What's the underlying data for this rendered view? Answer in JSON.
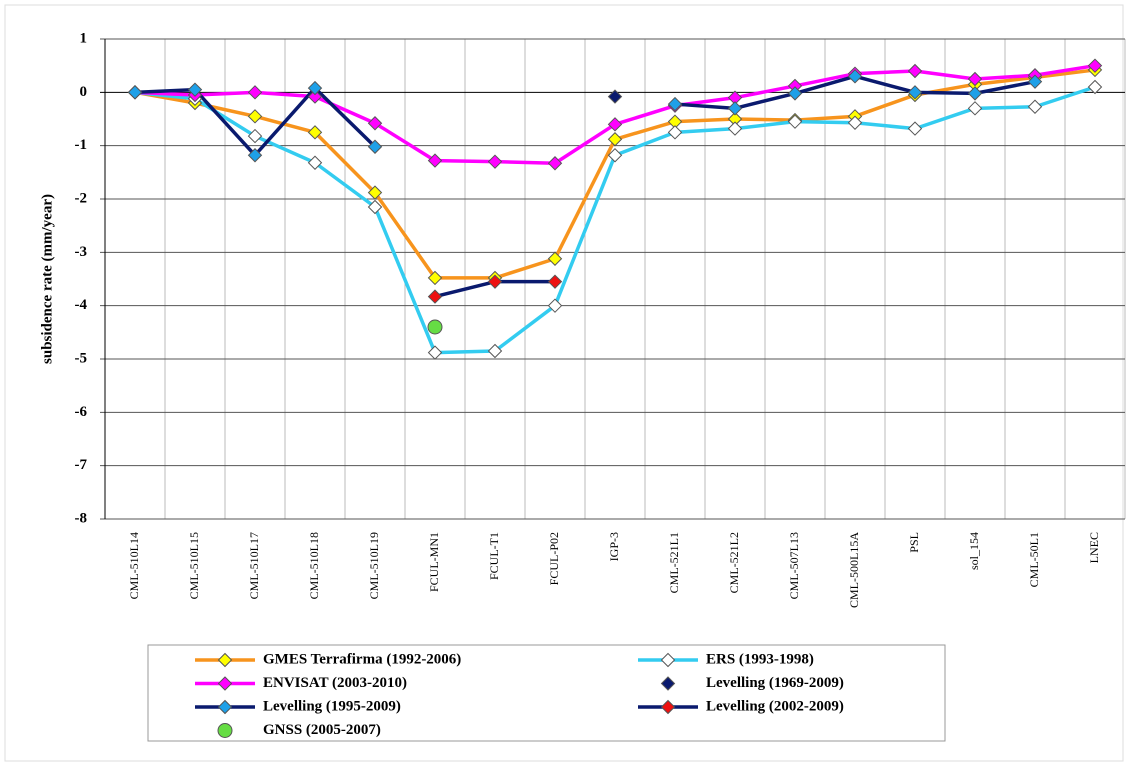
{
  "chart_data": {
    "type": "line",
    "y_label": "subsidence rate (mm/year)",
    "categories": [
      "CML-510L14",
      "CML-510L15",
      "CML-510L17",
      "CML-510L18",
      "CML-510L19",
      "FCUL-MN1",
      "FCUL-T1",
      "FCUL-P02",
      "IGP-3",
      "CML-521L1",
      "CML-521L2",
      "CML-507L13",
      "CML-500L15A",
      "PSL",
      "sol_154",
      "CML-50L1",
      "LNEC"
    ],
    "ylim": [
      -8,
      1
    ],
    "yticks": [
      -8,
      -7,
      -6,
      -5,
      -4,
      -3,
      -2,
      -1,
      0,
      1
    ],
    "grid": true,
    "series": [
      {
        "name": "GMES Terrafirma (1992-2006)",
        "color": "#f7941d",
        "marker_color": "#ffff00",
        "marker": "diamond",
        "line": true,
        "values": [
          0,
          -0.2,
          -0.45,
          -0.75,
          -1.88,
          -3.48,
          -3.48,
          -3.12,
          -0.88,
          -0.55,
          -0.5,
          -0.52,
          -0.45,
          -0.05,
          0.15,
          0.28,
          0.42
        ]
      },
      {
        "name": "ERS (1993-1998)",
        "color": "#33ccf0",
        "marker_color": "#ffffff",
        "marker": "diamond",
        "line": true,
        "values": [
          0,
          -0.12,
          -0.82,
          -1.32,
          -2.15,
          -4.88,
          -4.85,
          -4.0,
          -1.18,
          -0.75,
          -0.68,
          -0.55,
          -0.57,
          -0.68,
          -0.3,
          -0.27,
          0.1
        ]
      },
      {
        "name": "ENVISAT (2003-2010)",
        "color": "#ff00ff",
        "marker_color": "#ff00ff",
        "marker": "diamond",
        "line": true,
        "values": [
          0,
          -0.05,
          0.0,
          -0.08,
          -0.58,
          -1.28,
          -1.3,
          -1.33,
          -0.6,
          -0.25,
          -0.1,
          0.12,
          0.35,
          0.4,
          0.25,
          0.32,
          0.5
        ]
      },
      {
        "name": "Levelling (1969-2009)",
        "color": "#0a1a6e",
        "marker_color": "#0a1a6e",
        "marker": "diamond",
        "line": false,
        "values": [
          null,
          null,
          null,
          null,
          null,
          null,
          null,
          null,
          -0.08,
          null,
          null,
          null,
          null,
          null,
          null,
          null,
          null
        ]
      },
      {
        "name": "Levelling (1995-2009)",
        "color": "#0a1a6e",
        "marker_color": "#1ea0e8",
        "marker": "diamond",
        "line": true,
        "values": [
          0,
          0.05,
          -1.18,
          0.08,
          -1.02,
          null,
          null,
          null,
          null,
          -0.22,
          -0.3,
          -0.02,
          0.3,
          0.0,
          -0.02,
          0.2,
          null
        ]
      },
      {
        "name": "Levelling (2002-2009)",
        "color": "#0a1a6e",
        "marker_color": "#ee1111",
        "marker": "diamond",
        "line": true,
        "values": [
          null,
          null,
          null,
          null,
          null,
          -3.83,
          -3.55,
          -3.55,
          null,
          null,
          null,
          null,
          null,
          null,
          null,
          null,
          null
        ]
      },
      {
        "name": "GNSS (2005-2007)",
        "color": "#66dd44",
        "marker_color": "#66dd44",
        "marker": "circle",
        "line": false,
        "values": [
          null,
          null,
          null,
          null,
          null,
          -4.4,
          null,
          null,
          null,
          null,
          null,
          null,
          null,
          null,
          null,
          null,
          null
        ]
      }
    ]
  }
}
